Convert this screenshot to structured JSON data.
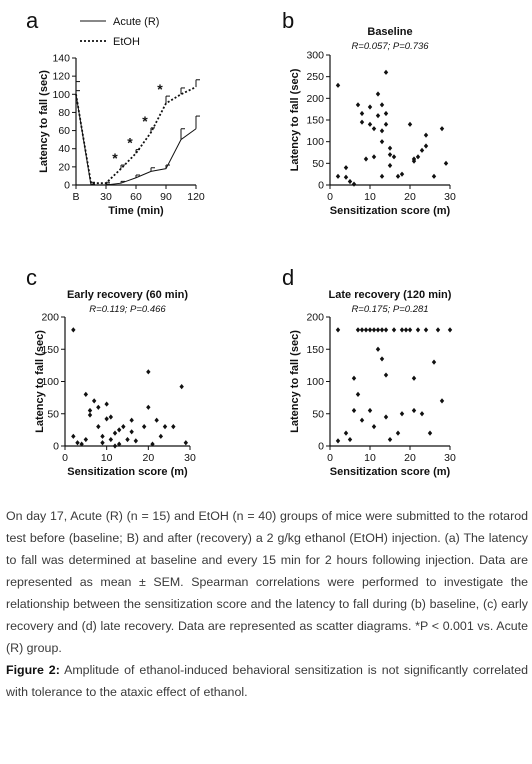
{
  "chart_data": [
    {
      "id": "a",
      "type": "line",
      "letter": "a",
      "title": "",
      "xlabel": "Time (min)",
      "ylabel": "Latency to fall (sec)",
      "x_ticks": [
        "B",
        "30",
        "60",
        "90",
        "120"
      ],
      "x": [
        "B",
        "15",
        "30",
        "45",
        "60",
        "75",
        "90",
        "105",
        "120"
      ],
      "ylim": [
        0,
        140
      ],
      "y_ticks": [
        0,
        20,
        40,
        60,
        80,
        100,
        120,
        140
      ],
      "series": [
        {
          "name": "Acute (R)",
          "style": "solid",
          "values": [
            100,
            0,
            0,
            2,
            8,
            15,
            18,
            50,
            62
          ],
          "sem": [
            14,
            1,
            1,
            2,
            3,
            4,
            4,
            12,
            14
          ]
        },
        {
          "name": "EtOH",
          "style": "dotted",
          "values": [
            100,
            2,
            2,
            18,
            35,
            58,
            90,
            100,
            108
          ],
          "sem": [
            4,
            1,
            1,
            4,
            4,
            5,
            8,
            7,
            8
          ]
        }
      ],
      "significance": [
        "45",
        "60",
        "75",
        "90"
      ],
      "significance_marker": "*"
    },
    {
      "id": "b",
      "type": "scatter",
      "letter": "b",
      "title": "Baseline",
      "stats": "R=0.057; P=0.736",
      "xlabel": "Sensitization score (m)",
      "ylabel": "Latency to fall (sec)",
      "xlim": [
        0,
        30
      ],
      "ylim": [
        0,
        300
      ],
      "x_ticks": [
        0,
        10,
        20,
        30
      ],
      "y_ticks": [
        0,
        50,
        100,
        150,
        200,
        250,
        300
      ],
      "points": [
        [
          2,
          230
        ],
        [
          2,
          20
        ],
        [
          4,
          40
        ],
        [
          4,
          18
        ],
        [
          5,
          8
        ],
        [
          6,
          2
        ],
        [
          7,
          185
        ],
        [
          8,
          145
        ],
        [
          8,
          165
        ],
        [
          9,
          60
        ],
        [
          10,
          180
        ],
        [
          10,
          140
        ],
        [
          11,
          130
        ],
        [
          11,
          65
        ],
        [
          12,
          210
        ],
        [
          12,
          160
        ],
        [
          13,
          185
        ],
        [
          13,
          100
        ],
        [
          13,
          125
        ],
        [
          13,
          20
        ],
        [
          14,
          260
        ],
        [
          14,
          140
        ],
        [
          14,
          165
        ],
        [
          15,
          70
        ],
        [
          15,
          85
        ],
        [
          15,
          45
        ],
        [
          16,
          65
        ],
        [
          17,
          20
        ],
        [
          18,
          25
        ],
        [
          20,
          140
        ],
        [
          21,
          55
        ],
        [
          21,
          60
        ],
        [
          22,
          65
        ],
        [
          23,
          80
        ],
        [
          24,
          90
        ],
        [
          24,
          115
        ],
        [
          26,
          20
        ],
        [
          28,
          130
        ],
        [
          29,
          50
        ]
      ]
    },
    {
      "id": "c",
      "type": "scatter",
      "letter": "c",
      "title": "Early recovery (60 min)",
      "stats": "R=0.119; P=0.466",
      "xlabel": "Sensitization score (m)",
      "ylabel": "Latency to fall (sec)",
      "xlim": [
        0,
        30
      ],
      "ylim": [
        0,
        200
      ],
      "x_ticks": [
        0,
        10,
        20,
        30
      ],
      "y_ticks": [
        0,
        50,
        100,
        150,
        200
      ],
      "points": [
        [
          2,
          180
        ],
        [
          2,
          15
        ],
        [
          3,
          5
        ],
        [
          4,
          3
        ],
        [
          5,
          80
        ],
        [
          5,
          10
        ],
        [
          6,
          55
        ],
        [
          6,
          48
        ],
        [
          7,
          70
        ],
        [
          8,
          60
        ],
        [
          8,
          30
        ],
        [
          9,
          15
        ],
        [
          9,
          5
        ],
        [
          10,
          65
        ],
        [
          10,
          42
        ],
        [
          11,
          45
        ],
        [
          11,
          10
        ],
        [
          12,
          20
        ],
        [
          12,
          0
        ],
        [
          13,
          25
        ],
        [
          13,
          3
        ],
        [
          14,
          30
        ],
        [
          15,
          10
        ],
        [
          16,
          40
        ],
        [
          16,
          22
        ],
        [
          17,
          8
        ],
        [
          19,
          30
        ],
        [
          20,
          115
        ],
        [
          20,
          60
        ],
        [
          21,
          3
        ],
        [
          22,
          40
        ],
        [
          23,
          15
        ],
        [
          24,
          30
        ],
        [
          26,
          30
        ],
        [
          28,
          92
        ],
        [
          29,
          5
        ]
      ]
    },
    {
      "id": "d",
      "type": "scatter",
      "letter": "d",
      "title": "Late recovery (120 min)",
      "stats": "R=0.175; P=0.281",
      "xlabel": "Sensitization score (m)",
      "ylabel": "Latency to fall (sec)",
      "xlim": [
        0,
        30
      ],
      "ylim": [
        0,
        200
      ],
      "x_ticks": [
        0,
        10,
        20,
        30
      ],
      "y_ticks": [
        0,
        50,
        100,
        150,
        200
      ],
      "points": [
        [
          2,
          180
        ],
        [
          2,
          8
        ],
        [
          4,
          20
        ],
        [
          5,
          10
        ],
        [
          6,
          105
        ],
        [
          6,
          55
        ],
        [
          7,
          180
        ],
        [
          7,
          80
        ],
        [
          8,
          180
        ],
        [
          8,
          40
        ],
        [
          9,
          180
        ],
        [
          10,
          180
        ],
        [
          10,
          55
        ],
        [
          11,
          180
        ],
        [
          11,
          30
        ],
        [
          12,
          180
        ],
        [
          12,
          150
        ],
        [
          13,
          180
        ],
        [
          13,
          135
        ],
        [
          14,
          180
        ],
        [
          14,
          110
        ],
        [
          14,
          45
        ],
        [
          15,
          10
        ],
        [
          16,
          180
        ],
        [
          17,
          20
        ],
        [
          18,
          180
        ],
        [
          18,
          50
        ],
        [
          19,
          180
        ],
        [
          20,
          180
        ],
        [
          21,
          105
        ],
        [
          21,
          55
        ],
        [
          22,
          180
        ],
        [
          23,
          50
        ],
        [
          24,
          180
        ],
        [
          25,
          20
        ],
        [
          26,
          130
        ],
        [
          27,
          180
        ],
        [
          28,
          70
        ],
        [
          30,
          180
        ]
      ]
    }
  ],
  "caption": {
    "body": "On day 17, Acute (R) (n = 15) and EtOH (n = 40) groups of mice were submitted to the rotarod test before (baseline; B) and after (recovery) a 2 g/kg ethanol (EtOH) injection. (a) The latency to fall was determined at baseline and every 15 min for 2 hours following injection. Data are represented as mean ± SEM. Spearman correlations were performed to investigate the relationship between the sensitization score and the latency to fall during (b) baseline, (c) early recovery and (d) late recovery. Data are represented as scatter diagrams. *P < 0.001 vs. Acute (R) group.",
    "figure_label": "Figure 2:",
    "figure_text": "Amplitude of ethanol-induced behavioral sensitization is not significantly correlated with tolerance to the ataxic effect of ethanol."
  }
}
